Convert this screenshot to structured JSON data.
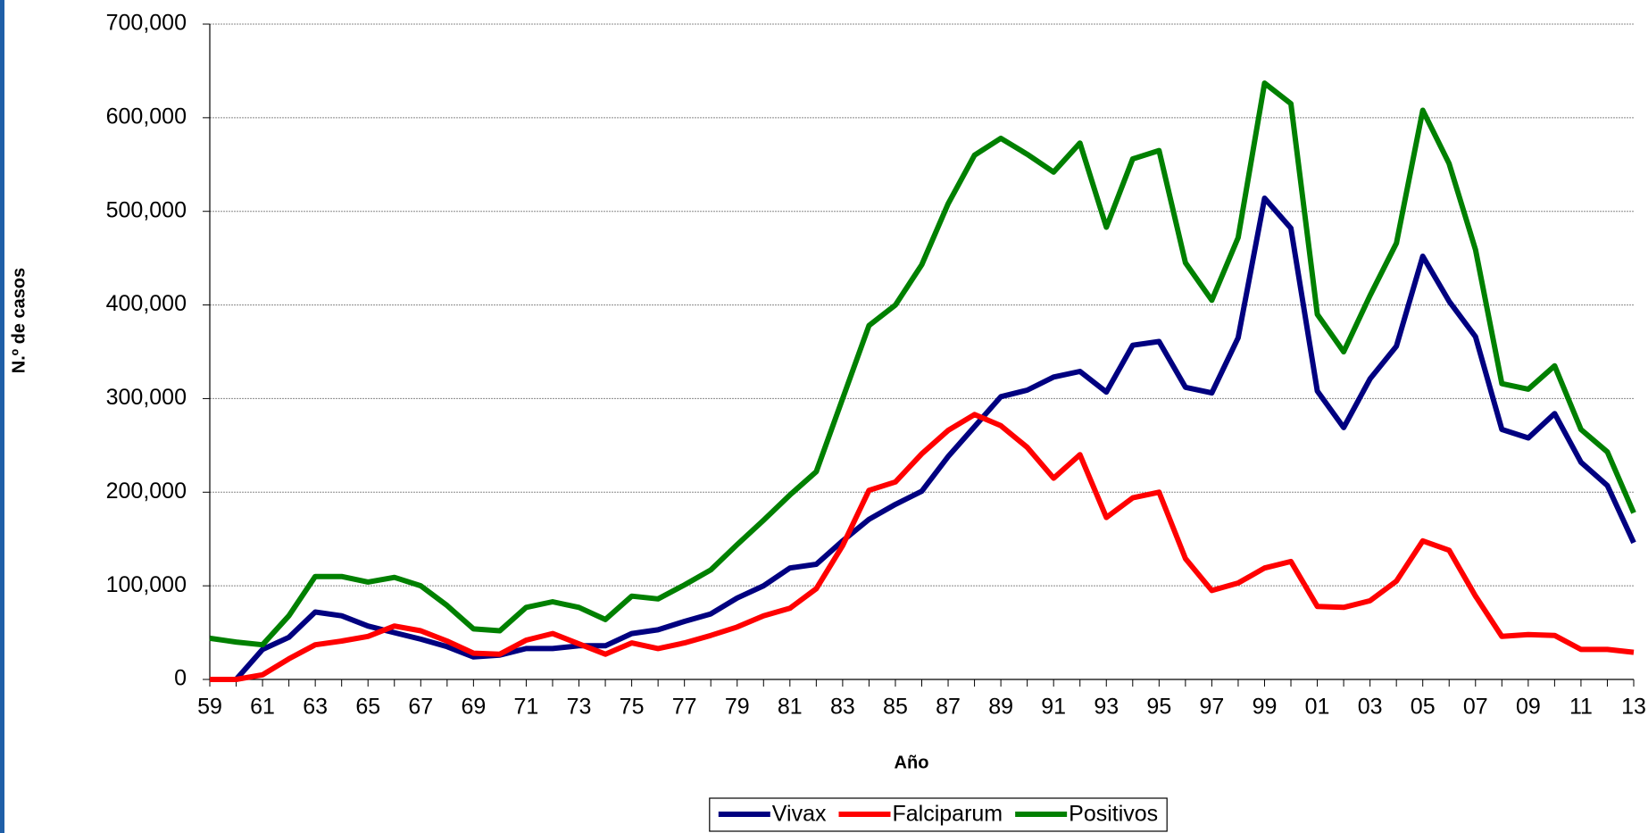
{
  "chart_data": {
    "type": "line",
    "y_label": "N.º de casos",
    "x_label": "Año",
    "categories": [
      "59",
      null,
      "61",
      null,
      "63",
      null,
      "65",
      null,
      "67",
      null,
      "69",
      null,
      "71",
      null,
      "73",
      null,
      "75",
      null,
      "77",
      null,
      "79",
      null,
      "81",
      null,
      "83",
      null,
      "85",
      null,
      "87",
      null,
      "89",
      null,
      "91",
      null,
      "93",
      null,
      "95",
      null,
      "97",
      null,
      "99",
      null,
      "01",
      null,
      "03",
      null,
      "05",
      null,
      "07",
      null,
      "09",
      null,
      "11",
      null,
      "13"
    ],
    "ylim": [
      0,
      700000
    ],
    "yticks": [
      0,
      {
        "value": 100000,
        "label": "100,000"
      },
      {
        "value": 200000,
        "label": "200,000"
      },
      {
        "value": 300000,
        "label": "300,000"
      },
      {
        "value": 400000,
        "label": "400,000"
      },
      {
        "value": 500000,
        "label": "500,000"
      },
      {
        "value": 600000,
        "label": "600,000"
      },
      {
        "value": 700000,
        "label": "700,000"
      }
    ],
    "grid": true,
    "legend": "bottom",
    "series": [
      {
        "name": "Vivax",
        "color": "#000080",
        "values": [
          0,
          0,
          32000,
          45000,
          72000,
          68000,
          57000,
          50000,
          43000,
          35000,
          24000,
          26000,
          33000,
          33000,
          36000,
          36000,
          49000,
          53000,
          62000,
          70000,
          87000,
          100000,
          119000,
          123000,
          148000,
          171000,
          187000,
          201000,
          238000,
          270000,
          302000,
          309000,
          323000,
          329000,
          307000,
          357000,
          361000,
          312000,
          306000,
          365000,
          514000,
          482000,
          308000,
          269000,
          321000,
          356000,
          452000,
          404000,
          366000,
          267000,
          258000,
          284000,
          232000,
          207000,
          146000
        ]
      },
      {
        "name": "Falciparum",
        "color": "#ff0000",
        "values": [
          0,
          0,
          5000,
          22000,
          37000,
          41000,
          46000,
          57000,
          52000,
          41000,
          28000,
          27000,
          42000,
          49000,
          38000,
          27000,
          39000,
          33000,
          39000,
          47000,
          56000,
          68000,
          76000,
          97000,
          143000,
          202000,
          211000,
          241000,
          266000,
          283000,
          271000,
          248000,
          215000,
          240000,
          173000,
          194000,
          200000,
          129000,
          95000,
          103000,
          119000,
          126000,
          78000,
          77000,
          84000,
          105000,
          148000,
          138000,
          89000,
          46000,
          48000,
          47000,
          32000,
          32000,
          29000
        ]
      },
      {
        "name": "Positivos",
        "color": "#008000",
        "values": [
          44000,
          40000,
          37000,
          68000,
          110000,
          110000,
          104000,
          109000,
          100000,
          79000,
          54000,
          52000,
          77000,
          83000,
          77000,
          64000,
          89000,
          86000,
          101000,
          117000,
          144000,
          170000,
          197000,
          222000,
          300000,
          378000,
          400000,
          443000,
          508000,
          560000,
          578000,
          561000,
          542000,
          573000,
          483000,
          556000,
          565000,
          445000,
          405000,
          472000,
          637000,
          615000,
          390000,
          350000,
          410000,
          466000,
          608000,
          551000,
          459000,
          316000,
          310000,
          335000,
          267000,
          243000,
          178000
        ]
      }
    ]
  }
}
